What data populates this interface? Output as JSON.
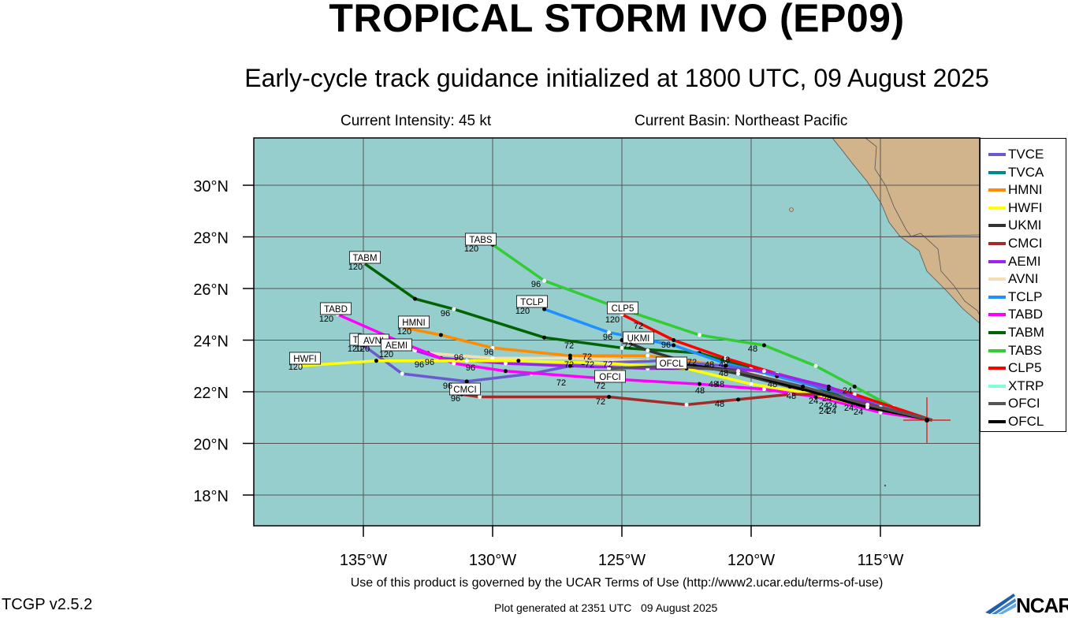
{
  "title": "TROPICAL STORM IVO (EP09)",
  "subtitle": "Early-cycle track guidance initialized at 1800 UTC, 09 August 2025",
  "current_intensity": "Current Intensity: 45 kt",
  "current_basin": "Current Basin: Northeast Pacific",
  "lat_labels": [
    "30°N",
    "28°N",
    "26°N",
    "24°N",
    "22°N",
    "20°N",
    "18°N"
  ],
  "lon_labels": [
    "135°W",
    "130°W",
    "125°W",
    "120°W",
    "115°W"
  ],
  "colors": {
    "ocean": "#96cdcd",
    "land": "#d2b48c",
    "grid": "#555555"
  },
  "legend": [
    {
      "name": "TVCE",
      "color": "#6a5acd"
    },
    {
      "name": "TVCA",
      "color": "#008b8b"
    },
    {
      "name": "HMNI",
      "color": "#ff8c00"
    },
    {
      "name": "HWFI",
      "color": "#ffff00"
    },
    {
      "name": "UKMI",
      "color": "#333333"
    },
    {
      "name": "CMCI",
      "color": "#a52a2a"
    },
    {
      "name": "AEMI",
      "color": "#a020f0"
    },
    {
      "name": "AVNI",
      "color": "#f5deb3"
    },
    {
      "name": "TCLP",
      "color": "#1e90ff"
    },
    {
      "name": "TABD",
      "color": "#ff00ff"
    },
    {
      "name": "TABM",
      "color": "#006400"
    },
    {
      "name": "TABS",
      "color": "#32cd32"
    },
    {
      "name": "CLP5",
      "color": "#ff0000"
    },
    {
      "name": "XTRP",
      "color": "#7fffd4"
    },
    {
      "name": "OFCI",
      "color": "#555555"
    },
    {
      "name": "OFCL",
      "color": "#000000"
    }
  ],
  "track_end_labels": [
    "TABS",
    "TABM",
    "TCLP",
    "CLP5",
    "TABD",
    "HMNI",
    "UKMI",
    "T",
    "AVNI",
    "AEMI",
    "OFCL",
    "HWFI",
    "OFCI",
    "CMCI"
  ],
  "hour_labels": [
    "120",
    "96",
    "72",
    "48",
    "24"
  ],
  "tracks": [
    {
      "id": "TABS",
      "color": "#32cd32",
      "points": [
        [
          -113.0,
          20.9
        ],
        [
          -114.5,
          21.4
        ],
        [
          -116,
          22.2
        ],
        [
          -117.5,
          23.0
        ],
        [
          -119.5,
          23.8
        ],
        [
          -122,
          24.2
        ],
        [
          -125,
          25.2
        ],
        [
          -128,
          26.3
        ],
        [
          -130,
          27.7
        ]
      ]
    },
    {
      "id": "TABM",
      "color": "#006400",
      "points": [
        [
          -113.0,
          20.9
        ],
        [
          -116,
          21.6
        ],
        [
          -118,
          22.4
        ],
        [
          -120,
          22.9
        ],
        [
          -122,
          23.5
        ],
        [
          -125,
          23.7
        ],
        [
          -128,
          24.1
        ],
        [
          -131.5,
          25.2
        ],
        [
          -133,
          25.6
        ],
        [
          -135,
          27.0
        ]
      ]
    },
    {
      "id": "TCLP",
      "color": "#1e90ff",
      "points": [
        [
          -113.0,
          20.9
        ],
        [
          -116,
          21.8
        ],
        [
          -119,
          22.6
        ],
        [
          -121,
          23.1
        ],
        [
          -123,
          23.8
        ],
        [
          -125.5,
          24.3
        ],
        [
          -128,
          25.2
        ]
      ]
    },
    {
      "id": "CLP5",
      "color": "#ff0000",
      "points": [
        [
          -113.0,
          20.9
        ],
        [
          -116,
          21.9
        ],
        [
          -119,
          22.7
        ],
        [
          -121,
          23.3
        ],
        [
          -123,
          24.0
        ],
        [
          -125,
          25.0
        ]
      ]
    },
    {
      "id": "UKMI",
      "color": "#333333",
      "points": [
        [
          -113.0,
          20.9
        ],
        [
          -116,
          21.6
        ],
        [
          -118.5,
          22.2
        ],
        [
          -120.5,
          22.7
        ],
        [
          -122,
          23.0
        ],
        [
          -124,
          23.6
        ],
        [
          -125,
          24.0
        ]
      ]
    },
    {
      "id": "HMNI",
      "color": "#ff8c00",
      "points": [
        [
          -113.0,
          20.9
        ],
        [
          -115,
          21.2
        ],
        [
          -117,
          21.8
        ],
        [
          -119.5,
          22.6
        ],
        [
          -121,
          23.0
        ],
        [
          -124,
          23.4
        ],
        [
          -127,
          23.4
        ],
        [
          -130,
          23.7
        ],
        [
          -132,
          24.2
        ],
        [
          -133.5,
          24.5
        ]
      ]
    },
    {
      "id": "AVNI",
      "color": "#f5deb3",
      "points": [
        [
          -113.0,
          20.9
        ],
        [
          -115,
          21.3
        ],
        [
          -117.5,
          22.0
        ],
        [
          -119.5,
          22.6
        ],
        [
          -121,
          23.0
        ],
        [
          -124,
          23.2
        ],
        [
          -127,
          23.3
        ],
        [
          -130,
          23.3
        ],
        [
          -132.5,
          23.5
        ],
        [
          -134.5,
          24.0
        ]
      ]
    },
    {
      "id": "TVCE",
      "color": "#6a5acd",
      "points": [
        [
          -113.0,
          20.9
        ],
        [
          -115,
          21.4
        ],
        [
          -117,
          22.1
        ],
        [
          -119,
          22.7
        ],
        [
          -121,
          23.0
        ],
        [
          -123.5,
          23.2
        ],
        [
          -126.5,
          23.1
        ],
        [
          -128.5,
          22.7
        ],
        [
          -131,
          22.4
        ],
        [
          -133.5,
          22.7
        ],
        [
          -135,
          23.8
        ]
      ]
    },
    {
      "id": "AEMI",
      "color": "#a020f0",
      "points": [
        [
          -113.0,
          20.9
        ],
        [
          -115,
          21.4
        ],
        [
          -117,
          22.2
        ],
        [
          -119.5,
          22.8
        ],
        [
          -121.5,
          22.9
        ],
        [
          -124,
          22.9
        ],
        [
          -127,
          23.0
        ],
        [
          -129.5,
          23.1
        ],
        [
          -132,
          23.3
        ],
        [
          -133,
          23.6
        ]
      ]
    },
    {
      "id": "TABD",
      "color": "#ff00ff",
      "points": [
        [
          -113.0,
          20.9
        ],
        [
          -115,
          21.2
        ],
        [
          -117.5,
          21.8
        ],
        [
          -119.5,
          22.1
        ],
        [
          -122,
          22.3
        ],
        [
          -125.5,
          22.5
        ],
        [
          -129.5,
          22.8
        ],
        [
          -131.5,
          23.1
        ],
        [
          -133.5,
          23.9
        ],
        [
          -136,
          25.0
        ]
      ]
    },
    {
      "id": "HWFI",
      "color": "#ffff00",
      "points": [
        [
          -113.0,
          20.9
        ],
        [
          -115,
          21.3
        ],
        [
          -117.5,
          21.9
        ],
        [
          -120,
          22.3
        ],
        [
          -122.5,
          22.9
        ],
        [
          -125.5,
          23.1
        ],
        [
          -129,
          23.2
        ],
        [
          -131,
          23.2
        ],
        [
          -134.5,
          23.2
        ],
        [
          -137.5,
          23.0
        ]
      ]
    },
    {
      "id": "CMCI",
      "color": "#a52a2a",
      "points": [
        [
          -113.0,
          20.9
        ],
        [
          -115,
          21.4
        ],
        [
          -117,
          21.9
        ],
        [
          -118.5,
          21.9
        ],
        [
          -120.5,
          21.7
        ],
        [
          -122.5,
          21.5
        ],
        [
          -125.5,
          21.8
        ],
        [
          -130.5,
          21.8
        ],
        [
          -131.2,
          21.9
        ]
      ]
    },
    {
      "id": "OFCL",
      "color": "#000000",
      "points": [
        [
          -113.0,
          20.9
        ],
        [
          -115.5,
          21.4
        ],
        [
          -118,
          22.1
        ],
        [
          -120.5,
          22.8
        ],
        [
          -123,
          23.1
        ]
      ]
    },
    {
      "id": "OFCI",
      "color": "#555555",
      "points": [
        [
          -113.0,
          20.9
        ],
        [
          -115.5,
          21.5
        ],
        [
          -118,
          22.2
        ],
        [
          -120.5,
          22.8
        ],
        [
          -123,
          23.0
        ],
        [
          -125.5,
          22.9
        ]
      ]
    }
  ]
}
